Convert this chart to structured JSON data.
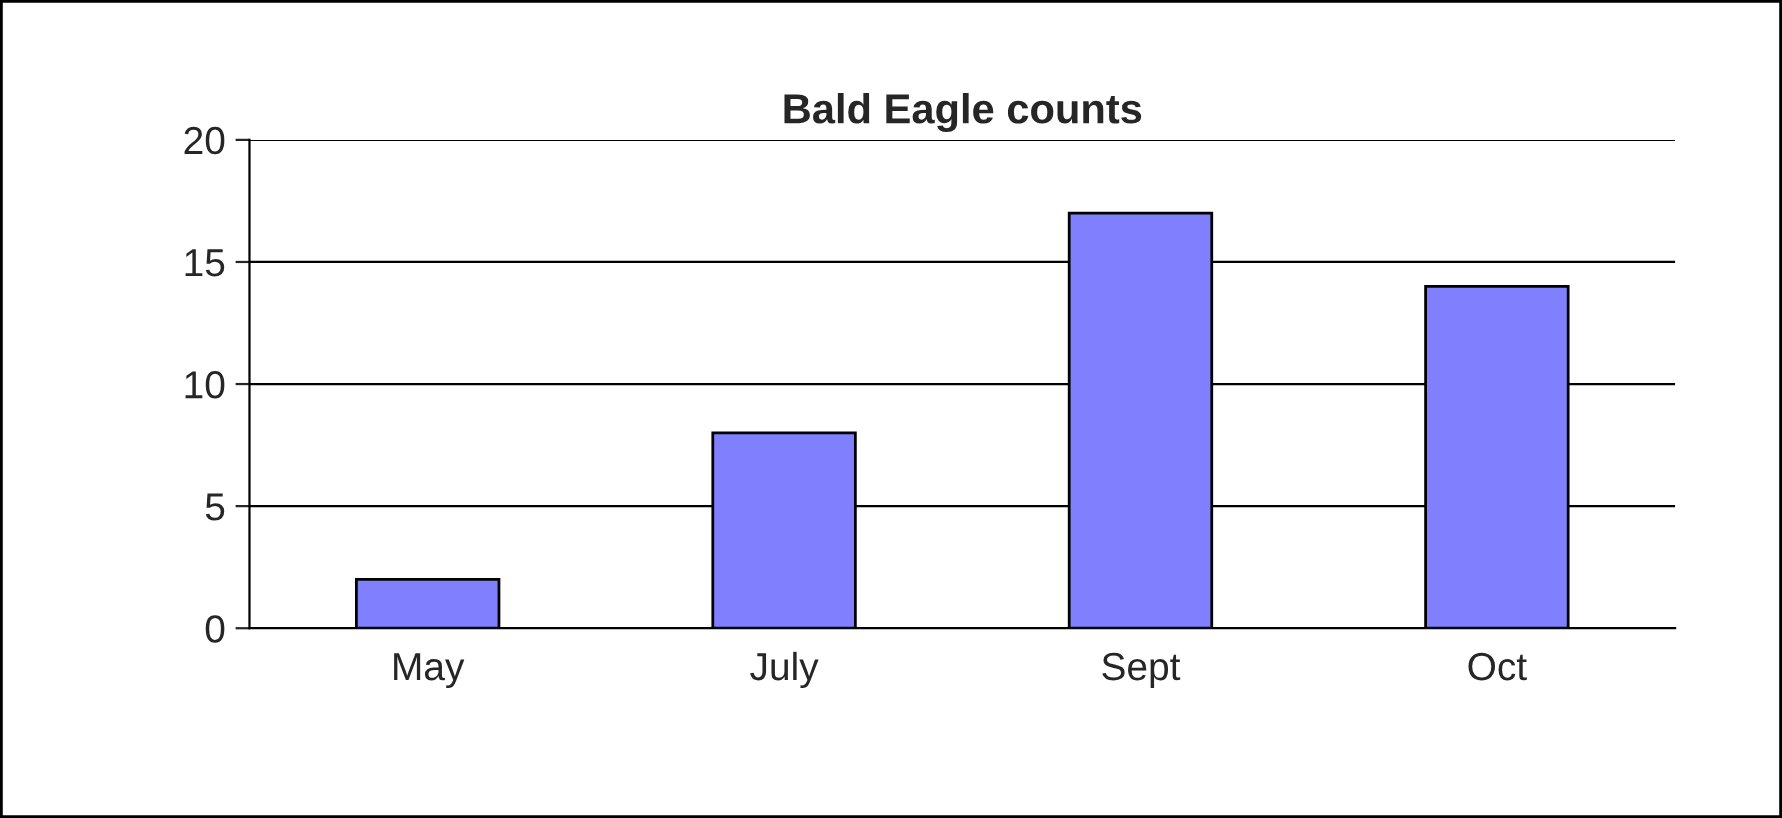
{
  "chart_data": {
    "type": "bar",
    "title": "Bald Eagle counts",
    "categories": [
      "May",
      "July",
      "Sept",
      "Oct"
    ],
    "values": [
      2,
      8,
      17,
      14
    ],
    "color": "#8080ff",
    "ylim": [
      0,
      20
    ],
    "yticks": [
      0,
      5,
      10,
      15,
      20
    ],
    "grid": "y"
  }
}
